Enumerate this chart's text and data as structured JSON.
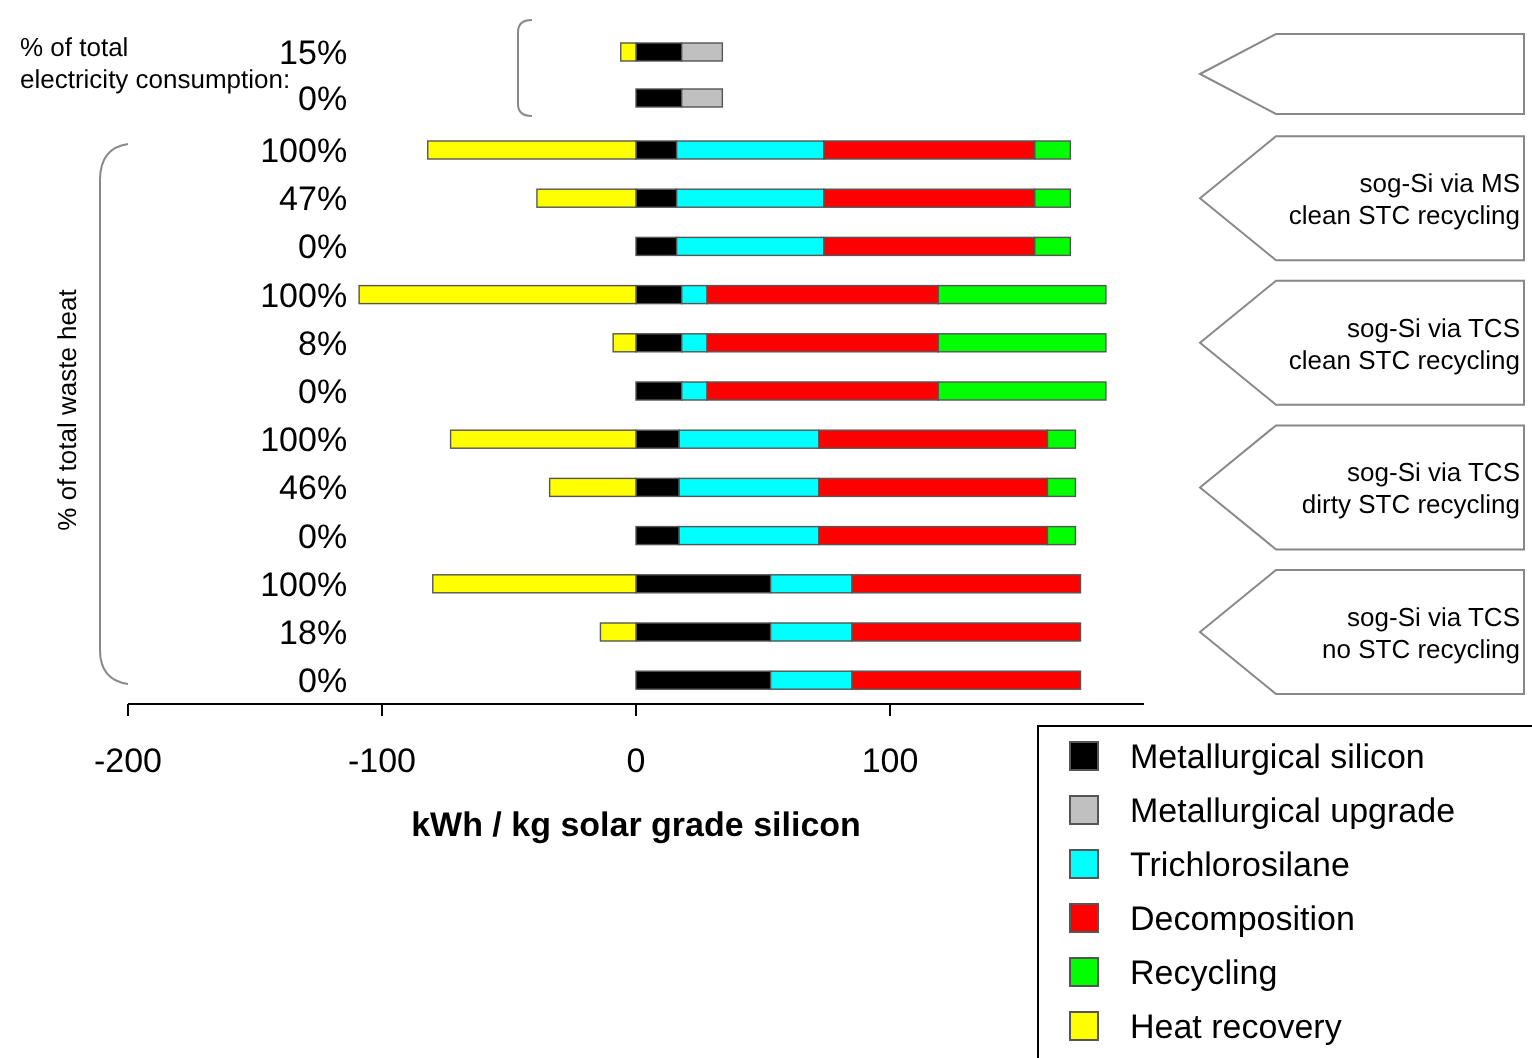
{
  "chart_data": {
    "type": "bar",
    "orientation": "horizontal",
    "stacked": true,
    "xlabel": "kWh / kg solar grade silicon",
    "categories": [
      "15%",
      "0%",
      "100%",
      "47%",
      "0%",
      "100%",
      "8%",
      "0%",
      "100%",
      "46%",
      "0%",
      "100%",
      "18%",
      "0%"
    ],
    "xlim": [
      -200,
      200
    ],
    "xticks": [
      -200,
      -100,
      0,
      100
    ],
    "grid": false,
    "legend": "bottom right",
    "annotations": [
      "% of total electricity consumption:",
      "% of total waste heat",
      "sog-Si via MS\nclean STC recycling",
      "sog-Si via TCS\nclean STC recycling",
      "sog-Si via TCS\ndirty STC recycling",
      "sog-Si via TCS\nno STC recycling"
    ],
    "series": [
      {
        "name": "Metallurgical silicon",
        "color": "#000000",
        "values": [
          18,
          18,
          16,
          16,
          16,
          18,
          18,
          18,
          17,
          17,
          17,
          53,
          53,
          53
        ]
      },
      {
        "name": "Metallurgical upgrade",
        "color": "#c0c0c0",
        "values": [
          16,
          16,
          null,
          null,
          null,
          null,
          null,
          null,
          null,
          null,
          null,
          null,
          null,
          null
        ]
      },
      {
        "name": "Trichlorosilane",
        "color": "#00ffff",
        "values": [
          null,
          null,
          58,
          58,
          58,
          10,
          10,
          10,
          55,
          55,
          55,
          32,
          32,
          32
        ]
      },
      {
        "name": "Decomposition",
        "color": "#ff0000",
        "values": [
          null,
          null,
          83,
          83,
          83,
          91,
          91,
          91,
          90,
          90,
          90,
          90,
          90,
          90
        ]
      },
      {
        "name": "Recycling",
        "color": "#00ff00",
        "values": [
          null,
          null,
          14,
          14,
          14,
          66,
          66,
          66,
          11,
          11,
          11,
          null,
          null,
          null
        ]
      },
      {
        "name": "Heat recovery",
        "color": "#ffff00",
        "values": [
          -6,
          null,
          -82,
          -39,
          null,
          -109,
          -9,
          null,
          -73,
          -34,
          null,
          -80,
          -14,
          null
        ]
      }
    ]
  }
}
